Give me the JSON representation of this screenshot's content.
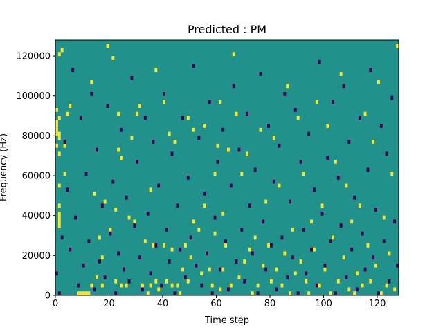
{
  "chart_data": {
    "type": "heatmap",
    "title": "Predicted : PM",
    "xlabel": "Time step",
    "ylabel": "Frequency (Hz)",
    "xlim": [
      0,
      128
    ],
    "ylim": [
      0,
      128000
    ],
    "xticks": [
      0,
      20,
      40,
      60,
      80,
      100,
      120
    ],
    "yticks": [
      0,
      20000,
      40000,
      60000,
      80000,
      100000,
      120000
    ],
    "ytick_labels": [
      "0",
      "20000",
      "40000",
      "60000",
      "80000",
      "100000",
      "120000"
    ],
    "n_time_steps": 128,
    "n_freq_bins": 64,
    "freq_bin_width_hz": 2000,
    "colormap": "viridis",
    "colors": {
      "background_cell": "#21918c",
      "high_cell": "#fde725",
      "low_cell": "#440154"
    },
    "values_legend": {
      "background": 0,
      "high": 1,
      "low": -1
    },
    "cells_high": [
      [
        0,
        37,
        1
      ],
      [
        0,
        40,
        1
      ],
      [
        0,
        41,
        1
      ],
      [
        0,
        42,
        1
      ],
      [
        0,
        43,
        1
      ],
      [
        0,
        46,
        1
      ],
      [
        1,
        17,
        2
      ],
      [
        1,
        19,
        2
      ],
      [
        1,
        22,
        1
      ],
      [
        1,
        27,
        1
      ],
      [
        1,
        35,
        1
      ],
      [
        1,
        39,
        1
      ],
      [
        1,
        40,
        1
      ],
      [
        1,
        44,
        1
      ],
      [
        1,
        60,
        1
      ],
      [
        2,
        61,
        1
      ],
      [
        3,
        30,
        1
      ],
      [
        3,
        37,
        1
      ],
      [
        4,
        45,
        1
      ],
      [
        5,
        47,
        1
      ],
      [
        8,
        0,
        1
      ],
      [
        9,
        0,
        1
      ],
      [
        10,
        0,
        1
      ],
      [
        11,
        0,
        1
      ],
      [
        12,
        0,
        1
      ],
      [
        13,
        2,
        1
      ],
      [
        13,
        53,
        1
      ],
      [
        14,
        25,
        1
      ],
      [
        15,
        4,
        1
      ],
      [
        16,
        14,
        1
      ],
      [
        17,
        9,
        1
      ],
      [
        17,
        2,
        1
      ],
      [
        18,
        23,
        1
      ],
      [
        19,
        62,
        1
      ],
      [
        20,
        16,
        1
      ],
      [
        21,
        59,
        1
      ],
      [
        22,
        21,
        1
      ],
      [
        22,
        3,
        1
      ],
      [
        23,
        36,
        1
      ],
      [
        23,
        45,
        1
      ],
      [
        24,
        34,
        1
      ],
      [
        24,
        2,
        1
      ],
      [
        26,
        2,
        1
      ],
      [
        27,
        19,
        1
      ],
      [
        28,
        39,
        1
      ],
      [
        29,
        18,
        1
      ],
      [
        30,
        45,
        1
      ],
      [
        31,
        47,
        1
      ],
      [
        32,
        2,
        1
      ],
      [
        33,
        13,
        1
      ],
      [
        34,
        0,
        1
      ],
      [
        35,
        2,
        1
      ],
      [
        35,
        26,
        1
      ],
      [
        36,
        12,
        1
      ],
      [
        37,
        3,
        1
      ],
      [
        37,
        56,
        1
      ],
      [
        38,
        1,
        1
      ],
      [
        39,
        2,
        1
      ],
      [
        40,
        12,
        1
      ],
      [
        40,
        48,
        1
      ],
      [
        41,
        3,
        1
      ],
      [
        42,
        40,
        1
      ],
      [
        43,
        11,
        1
      ],
      [
        43,
        2,
        1
      ],
      [
        44,
        38,
        1
      ],
      [
        45,
        2,
        1
      ],
      [
        46,
        0,
        1
      ],
      [
        47,
        6,
        1
      ],
      [
        48,
        12,
        1
      ],
      [
        49,
        3,
        1
      ],
      [
        49,
        44,
        1
      ],
      [
        50,
        9,
        1
      ],
      [
        51,
        18,
        1
      ],
      [
        51,
        41,
        1
      ],
      [
        53,
        16,
        1
      ],
      [
        54,
        5,
        1
      ],
      [
        55,
        22,
        1
      ],
      [
        55,
        42,
        1
      ],
      [
        56,
        10,
        1
      ],
      [
        57,
        6,
        1
      ],
      [
        58,
        2,
        1
      ],
      [
        59,
        15,
        1
      ],
      [
        59,
        30,
        1
      ],
      [
        60,
        37,
        1
      ],
      [
        61,
        1,
        1
      ],
      [
        61,
        48,
        1
      ],
      [
        62,
        20,
        1
      ],
      [
        62,
        6,
        1
      ],
      [
        63,
        12,
        1
      ],
      [
        64,
        36,
        1
      ],
      [
        65,
        2,
        1
      ],
      [
        66,
        60,
        1
      ],
      [
        67,
        45,
        1
      ],
      [
        68,
        4,
        1
      ],
      [
        69,
        30,
        1
      ],
      [
        70,
        8,
        1
      ],
      [
        71,
        35,
        1
      ],
      [
        72,
        11,
        1
      ],
      [
        73,
        0,
        1
      ],
      [
        74,
        14,
        1
      ],
      [
        75,
        2,
        1
      ],
      [
        76,
        41,
        1
      ],
      [
        77,
        7,
        1
      ],
      [
        78,
        23,
        1
      ],
      [
        79,
        12,
        1
      ],
      [
        80,
        3,
        1
      ],
      [
        81,
        39,
        1
      ],
      [
        82,
        6,
        1
      ],
      [
        83,
        27,
        1
      ],
      [
        84,
        2,
        1
      ],
      [
        85,
        10,
        1
      ],
      [
        86,
        52,
        1
      ],
      [
        87,
        0,
        1
      ],
      [
        88,
        16,
        1
      ],
      [
        89,
        5,
        1
      ],
      [
        90,
        44,
        1
      ],
      [
        91,
        8,
        1
      ],
      [
        92,
        30,
        1
      ],
      [
        93,
        3,
        1
      ],
      [
        94,
        0,
        1
      ],
      [
        95,
        18,
        1
      ],
      [
        96,
        11,
        1
      ],
      [
        97,
        48,
        1
      ],
      [
        98,
        2,
        1
      ],
      [
        99,
        22,
        1
      ],
      [
        100,
        6,
        1
      ],
      [
        101,
        42,
        1
      ],
      [
        102,
        0,
        1
      ],
      [
        103,
        14,
        1
      ],
      [
        104,
        33,
        1
      ],
      [
        105,
        3,
        1
      ],
      [
        106,
        55,
        1
      ],
      [
        107,
        9,
        1
      ],
      [
        108,
        27,
        1
      ],
      [
        109,
        1,
        1
      ],
      [
        110,
        18,
        1
      ],
      [
        111,
        0,
        1
      ],
      [
        112,
        5,
        1
      ],
      [
        113,
        22,
        1
      ],
      [
        114,
        2,
        1
      ],
      [
        115,
        45,
        1
      ],
      [
        116,
        12,
        1
      ],
      [
        117,
        3,
        1
      ],
      [
        118,
        38,
        1
      ],
      [
        119,
        7,
        1
      ],
      [
        120,
        53,
        1
      ],
      [
        121,
        0,
        1
      ],
      [
        122,
        19,
        1
      ],
      [
        123,
        2,
        1
      ],
      [
        124,
        10,
        1
      ],
      [
        125,
        30,
        1
      ],
      [
        126,
        1,
        1
      ],
      [
        127,
        62,
        1
      ]
    ],
    "cells_low": [
      [
        0,
        5,
        1
      ],
      [
        1,
        0,
        1
      ],
      [
        2,
        14,
        1
      ],
      [
        3,
        38,
        1
      ],
      [
        4,
        26,
        1
      ],
      [
        5,
        11,
        1
      ],
      [
        6,
        56,
        1
      ],
      [
        7,
        19,
        1
      ],
      [
        8,
        2,
        1
      ],
      [
        9,
        44,
        1
      ],
      [
        10,
        7,
        1
      ],
      [
        11,
        30,
        1
      ],
      [
        12,
        13,
        1
      ],
      [
        13,
        50,
        1
      ],
      [
        14,
        1,
        1
      ],
      [
        15,
        36,
        1
      ],
      [
        16,
        8,
        1
      ],
      [
        17,
        22,
        1
      ],
      [
        18,
        4,
        1
      ],
      [
        19,
        47,
        1
      ],
      [
        20,
        15,
        1
      ],
      [
        21,
        28,
        1
      ],
      [
        22,
        0,
        1
      ],
      [
        23,
        10,
        1
      ],
      [
        24,
        41,
        1
      ],
      [
        25,
        6,
        1
      ],
      [
        26,
        24,
        1
      ],
      [
        27,
        3,
        1
      ],
      [
        28,
        54,
        1
      ],
      [
        29,
        17,
        1
      ],
      [
        30,
        33,
        1
      ],
      [
        31,
        9,
        1
      ],
      [
        32,
        1,
        1
      ],
      [
        33,
        44,
        1
      ],
      [
        34,
        20,
        1
      ],
      [
        35,
        5,
        1
      ],
      [
        36,
        38,
        1
      ],
      [
        37,
        12,
        1
      ],
      [
        38,
        27,
        1
      ],
      [
        39,
        2,
        1
      ],
      [
        40,
        50,
        1
      ],
      [
        41,
        16,
        1
      ],
      [
        42,
        8,
        1
      ],
      [
        43,
        35,
        1
      ],
      [
        44,
        0,
        1
      ],
      [
        45,
        22,
        1
      ],
      [
        46,
        11,
        1
      ],
      [
        47,
        44,
        1
      ],
      [
        48,
        4,
        1
      ],
      [
        49,
        29,
        1
      ],
      [
        50,
        14,
        1
      ],
      [
        51,
        57,
        1
      ],
      [
        52,
        7,
        1
      ],
      [
        53,
        39,
        1
      ],
      [
        54,
        2,
        1
      ],
      [
        55,
        25,
        1
      ],
      [
        56,
        10,
        1
      ],
      [
        57,
        48,
        1
      ],
      [
        58,
        0,
        1
      ],
      [
        59,
        19,
        1
      ],
      [
        60,
        33,
        1
      ],
      [
        61,
        6,
        1
      ],
      [
        62,
        41,
        1
      ],
      [
        63,
        13,
        1
      ],
      [
        64,
        1,
        1
      ],
      [
        65,
        27,
        1
      ],
      [
        66,
        52,
        1
      ],
      [
        67,
        8,
        1
      ],
      [
        68,
        36,
        1
      ],
      [
        69,
        16,
        1
      ],
      [
        70,
        3,
        1
      ],
      [
        71,
        45,
        1
      ],
      [
        72,
        22,
        1
      ],
      [
        73,
        10,
        1
      ],
      [
        74,
        31,
        1
      ],
      [
        75,
        0,
        1
      ],
      [
        76,
        55,
        1
      ],
      [
        77,
        18,
        1
      ],
      [
        78,
        6,
        1
      ],
      [
        79,
        42,
        1
      ],
      [
        80,
        12,
        1
      ],
      [
        81,
        28,
        1
      ],
      [
        82,
        1,
        1
      ],
      [
        83,
        37,
        1
      ],
      [
        84,
        14,
        1
      ],
      [
        85,
        50,
        1
      ],
      [
        86,
        4,
        1
      ],
      [
        87,
        23,
        1
      ],
      [
        88,
        9,
        1
      ],
      [
        89,
        46,
        1
      ],
      [
        90,
        0,
        1
      ],
      [
        91,
        33,
        1
      ],
      [
        92,
        16,
        1
      ],
      [
        93,
        5,
        1
      ],
      [
        94,
        40,
        1
      ],
      [
        95,
        11,
        1
      ],
      [
        96,
        26,
        1
      ],
      [
        97,
        2,
        1
      ],
      [
        98,
        58,
        1
      ],
      [
        99,
        20,
        1
      ],
      [
        100,
        7,
        1
      ],
      [
        101,
        34,
        1
      ],
      [
        102,
        13,
        1
      ],
      [
        103,
        48,
        1
      ],
      [
        104,
        0,
        1
      ],
      [
        105,
        29,
        1
      ],
      [
        106,
        17,
        1
      ],
      [
        107,
        52,
        1
      ],
      [
        108,
        4,
        1
      ],
      [
        109,
        38,
        1
      ],
      [
        110,
        11,
        1
      ],
      [
        111,
        24,
        1
      ],
      [
        112,
        1,
        1
      ],
      [
        113,
        44,
        1
      ],
      [
        114,
        15,
        1
      ],
      [
        115,
        6,
        1
      ],
      [
        116,
        31,
        1
      ],
      [
        117,
        56,
        1
      ],
      [
        118,
        9,
        1
      ],
      [
        119,
        21,
        1
      ],
      [
        120,
        0,
        1
      ],
      [
        121,
        42,
        1
      ],
      [
        122,
        13,
        1
      ],
      [
        123,
        35,
        1
      ],
      [
        124,
        3,
        1
      ],
      [
        125,
        49,
        1
      ],
      [
        126,
        18,
        1
      ],
      [
        127,
        7,
        1
      ]
    ]
  }
}
